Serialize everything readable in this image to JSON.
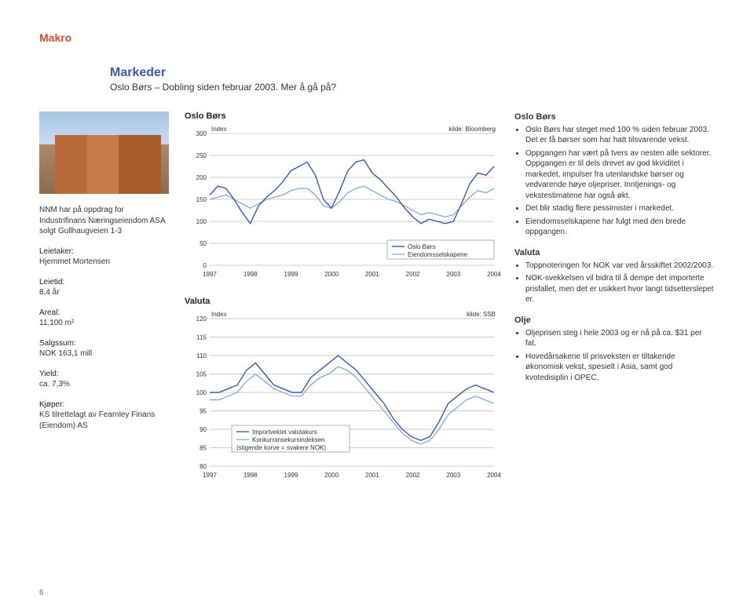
{
  "page": {
    "header": "Makro",
    "section_title": "Markeder",
    "section_sub": "Oslo Børs – Dobling siden februar 2003. Mer å gå på?",
    "page_number": "6"
  },
  "left": {
    "intro": "NNM har på oppdrag for Industrifinans Næringseiendom ASA solgt Gullhaugveien 1-3",
    "items": [
      {
        "label": "Leietaker:",
        "value": "Hjemmet Mortensen"
      },
      {
        "label": "Leietid:",
        "value": "8,4 år"
      },
      {
        "label": "Areal:",
        "value": "11.100 m²"
      },
      {
        "label": "Salgssum:",
        "value": "NOK 163,1 mill"
      },
      {
        "label": "Yield:",
        "value": "ca. 7,3%"
      },
      {
        "label": "Kjøper:",
        "value": "KS tilrettelagt av Fearnley Finans (Eiendom) AS"
      }
    ]
  },
  "chart1": {
    "title": "Oslo Børs",
    "ylabel": "Index",
    "source": "kilde: Bloomberg",
    "ylim": [
      0,
      300
    ],
    "ytick_step": 50,
    "x_categories": [
      "1997",
      "1998",
      "1999",
      "2000",
      "2001",
      "2002",
      "2003",
      "2004"
    ],
    "legend": [
      "Oslo Børs",
      "Eiendomsselskapene"
    ],
    "series1_color": "#3b5ba5",
    "series2_color": "#7aa3d6",
    "series1": [
      160,
      180,
      175,
      150,
      120,
      95,
      135,
      155,
      170,
      190,
      215,
      225,
      235,
      205,
      150,
      130,
      170,
      215,
      235,
      240,
      210,
      195,
      175,
      155,
      130,
      110,
      95,
      105,
      100,
      95,
      100,
      140,
      185,
      210,
      205,
      225
    ],
    "series2": [
      150,
      155,
      160,
      150,
      140,
      130,
      140,
      150,
      155,
      160,
      170,
      175,
      175,
      160,
      135,
      130,
      145,
      165,
      175,
      180,
      170,
      160,
      150,
      145,
      135,
      125,
      115,
      120,
      115,
      110,
      115,
      135,
      155,
      170,
      165,
      175
    ]
  },
  "chart2": {
    "title": "Valuta",
    "ylabel": "Index",
    "source": "kilde: SSB",
    "ylim": [
      80,
      120
    ],
    "ytick_step": 5,
    "x_categories": [
      "1997",
      "1998",
      "1999",
      "2000",
      "2001",
      "2002",
      "2003",
      "2004"
    ],
    "legend": [
      "Importvektet valutakurs",
      "Konkurransekursindeksen"
    ],
    "legend_note": "(stigende kurve = svakere NOK)",
    "series1_color": "#3b5ba5",
    "series2_color": "#7aa3d6",
    "series1": [
      100,
      100,
      101,
      102,
      106,
      108,
      105,
      102,
      101,
      100,
      100,
      104,
      106,
      108,
      110,
      108,
      106,
      103,
      100,
      97,
      93,
      90,
      88,
      87,
      88,
      92,
      97,
      99,
      101,
      102,
      101,
      100
    ],
    "series2": [
      98,
      98,
      99,
      100,
      103,
      105,
      103,
      101,
      100,
      99,
      99,
      102,
      104,
      105,
      107,
      106,
      104,
      101,
      98,
      95,
      92,
      89,
      87,
      86,
      87,
      90,
      94,
      96,
      98,
      99,
      98,
      97
    ]
  },
  "right": {
    "sections": [
      {
        "heading": "Oslo Børs",
        "bullets": [
          "Oslo Børs har steget med 100 % siden februar 2003. Det er få børser som har hatt tilsvarende vekst.",
          "Oppgangen har vært på tvers av nesten alle sektorer. Oppgangen er til dels drevet av god likviditet i markedet, impulser fra utenlandske børser og vedvarende høye oljepriser. Inntjenings- og vekstestimatene har også økt.",
          "Det blir stadig flere pessimister i markedet.",
          "Eiendomsselskapene har fulgt med den brede oppgangen."
        ]
      },
      {
        "heading": "Valuta",
        "bullets": [
          "Toppnoteringen for NOK var ved årsskiftet 2002/2003.",
          "NOK-svekkelsen vil bidra til å dempe det importerte prisfallet, men det er usikkert hvor langt tidsetterslepet er."
        ]
      },
      {
        "heading": "Olje",
        "bullets": [
          "Oljeprisen steg i hele 2003 og er nå på ca. $31 per fat.",
          "Hovedårsakene til prisveksten er tiltakende økonomisk vekst, spesielt i Asia, samt god kvotedisiplin i OPEC."
        ]
      }
    ]
  }
}
